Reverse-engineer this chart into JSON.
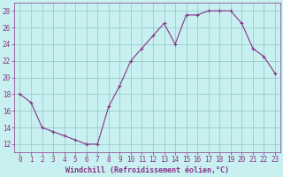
{
  "x": [
    0,
    1,
    2,
    3,
    4,
    5,
    6,
    7,
    8,
    9,
    10,
    11,
    12,
    13,
    14,
    15,
    16,
    17,
    18,
    19,
    20,
    21,
    22,
    23
  ],
  "y": [
    18,
    17,
    14,
    13.5,
    13,
    12.5,
    12,
    12,
    16.5,
    19,
    22,
    23.5,
    25,
    26.5,
    24,
    27.5,
    27.5,
    28,
    28,
    28,
    26.5,
    23.5,
    22.5,
    20.5
  ],
  "line_color": "#883388",
  "marker": "+",
  "markersize": 3,
  "linewidth": 0.8,
  "bg_color": "#c8f0f0",
  "grid_color": "#99cccc",
  "xlabel": "Windchill (Refroidissement éolien,°C)",
  "xlabel_color": "#883388",
  "tick_color": "#883388",
  "label_color": "#883388",
  "ylim": [
    11,
    29
  ],
  "xlim": [
    -0.5,
    23.5
  ],
  "yticks": [
    12,
    14,
    16,
    18,
    20,
    22,
    24,
    26,
    28
  ],
  "xticks": [
    0,
    1,
    2,
    3,
    4,
    5,
    6,
    7,
    8,
    9,
    10,
    11,
    12,
    13,
    14,
    15,
    16,
    17,
    18,
    19,
    20,
    21,
    22,
    23
  ],
  "xtick_labels": [
    "0",
    "1",
    "2",
    "3",
    "4",
    "5",
    "6",
    "7",
    "8",
    "9",
    "10",
    "11",
    "12",
    "13",
    "14",
    "15",
    "16",
    "17",
    "18",
    "19",
    "20",
    "21",
    "22",
    "23"
  ],
  "ytick_labels": [
    "12",
    "14",
    "16",
    "18",
    "20",
    "22",
    "24",
    "26",
    "28"
  ],
  "tick_fontsize": 5.5,
  "xlabel_fontsize": 6,
  "xlabel_fontweight": "bold"
}
